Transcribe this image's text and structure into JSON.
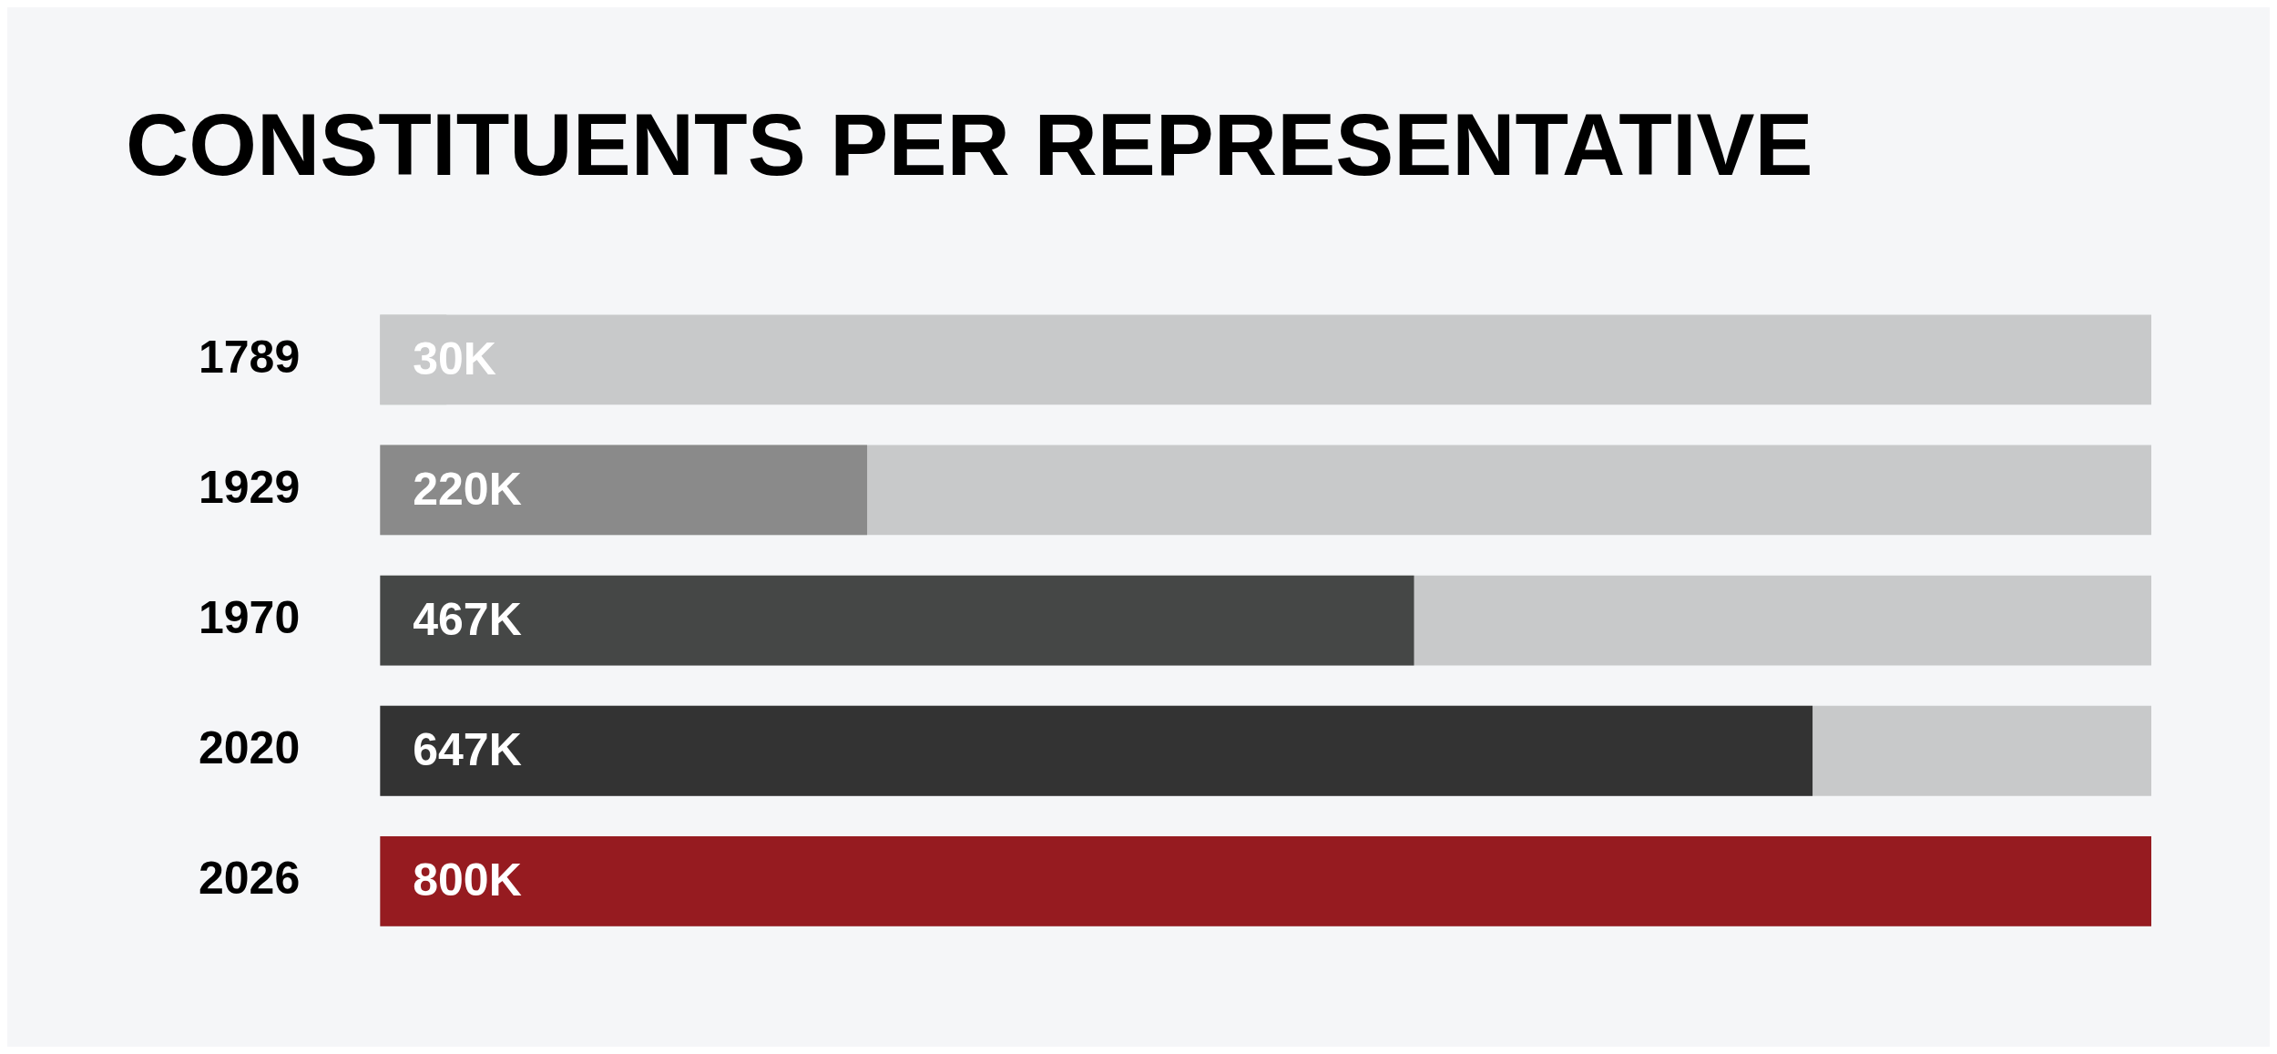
{
  "chart_data": {
    "type": "bar",
    "orientation": "horizontal",
    "title": "CONSTITUENTS PER REPRESENTATIVE",
    "categories": [
      "1789",
      "1929",
      "1970",
      "2020",
      "2026"
    ],
    "values": [
      30,
      220,
      467,
      647,
      800
    ],
    "colors": [
      "#c8c9ca",
      "#8a8a8a",
      "#454746",
      "#333333",
      "#961b20"
    ],
    "value_labels": [
      "30K",
      "220K",
      "467K",
      "647K",
      "800K"
    ],
    "tick_labels": "y",
    "legend": false
  }
}
